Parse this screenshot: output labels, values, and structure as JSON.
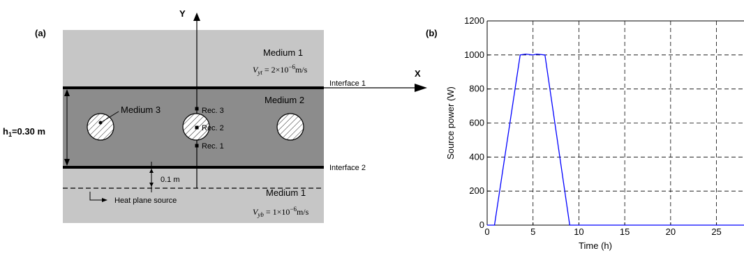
{
  "diagram_a": {
    "panel_label": "(a)",
    "y_axis_label": "Y",
    "x_axis_label": "X",
    "medium1_top_label": "Medium 1",
    "velocity_top": "V",
    "velocity_top_sub": "yt",
    "velocity_top_value": " = 2×10",
    "velocity_top_exp": "−6",
    "velocity_top_unit": "m/s",
    "medium2_label": "Medium 2",
    "medium3_label": "Medium 3",
    "interface1_label": "Interface 1",
    "interface2_label": "Interface 2",
    "rec3_label": "Rec. 3",
    "rec2_label": "Rec. 2",
    "rec1_label": "Rec. 1",
    "h1_label": "h",
    "h1_sub": "1",
    "h1_value": "=0.30 m",
    "gap_label": "0.1 m",
    "medium1_bottom_label": "Medium 1",
    "heat_source_label": "Heat plane source",
    "velocity_bottom": "V",
    "velocity_bottom_sub": "yb",
    "velocity_bottom_value": " = 1×10",
    "velocity_bottom_exp": "−6",
    "velocity_bottom_unit": "m/s",
    "colors": {
      "medium1": "#c6c6c6",
      "medium2": "#8c8c8c",
      "inclusion": "#ffffff"
    }
  },
  "chart_data": {
    "type": "line",
    "panel_label": "(b)",
    "xlabel": "Time (h)",
    "ylabel": "Source power (W)",
    "xlim": [
      0,
      28
    ],
    "ylim": [
      0,
      1200
    ],
    "xticks": [
      0,
      5,
      10,
      15,
      20,
      25
    ],
    "yticks": [
      0,
      200,
      400,
      600,
      800,
      1000,
      1200
    ],
    "grid": true,
    "series": [
      {
        "color": "#0000ff",
        "x": [
          0,
          0.8,
          3.6,
          4.2,
          5.0,
          5.4,
          6.3,
          9.0,
          28
        ],
        "y": [
          0,
          0,
          1000,
          1005,
          1000,
          1005,
          1000,
          0,
          0
        ]
      }
    ]
  }
}
